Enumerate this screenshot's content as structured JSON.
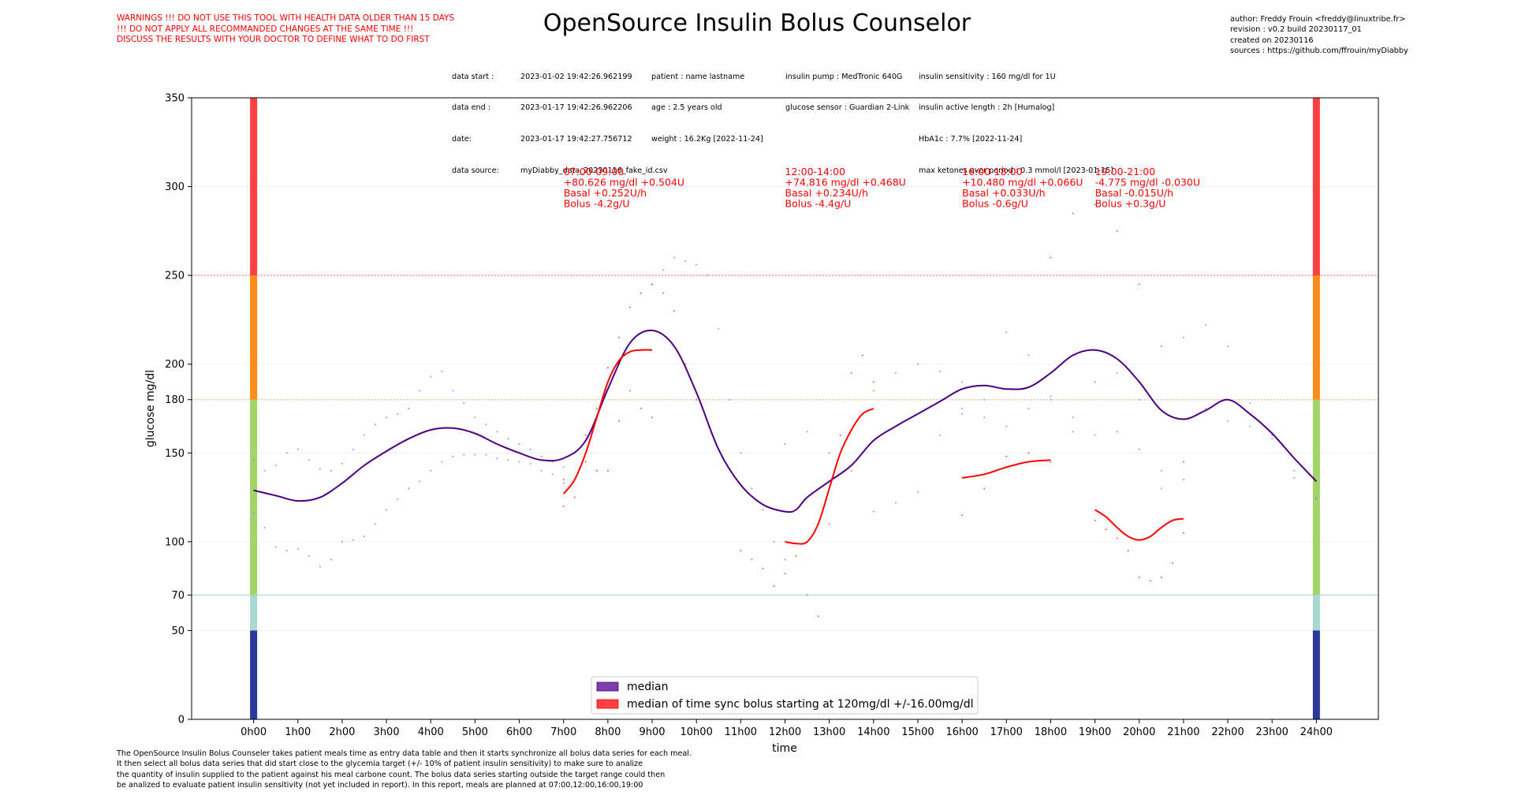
{
  "warnings": [
    "WARNINGS !!! DO NOT USE THIS TOOL WITH HEALTH DATA OLDER THAN 15 DAYS",
    "!!! DO NOT APPLY ALL RECOMMANDED CHANGES AT THE SAME TIME !!!",
    "DISCUSS THE RESULTS WITH YOUR DOCTOR TO DEFINE WHAT TO DO FIRST"
  ],
  "title": "OpenSource Insulin Bolus Counselor",
  "info": {
    "labels": [
      "data start :",
      "data end :",
      "date:",
      "data source:"
    ],
    "dates": [
      "2023-01-02 19:42:26.962199",
      "2023-01-17 19:42:26.962206",
      "2023-01-17 19:42:27.756712",
      "myDiabby_data_20230116_fake_id.csv"
    ],
    "patient": [
      "patient : name lastname",
      "age : 2.5 years old",
      "weight : 16.2Kg [2022-11-24]"
    ],
    "devices": [
      "insulin pump : MedTronic 640G",
      "glucose sensor : Guardian 2-Link"
    ],
    "insulin": [
      "insulin sensitivity : 160 mg/dl for 1U",
      "insulin active length : 2h [Humalog]",
      "HbA1c : 7.7% [2022-11-24]",
      "max ketones over period : 0.3 mmol/l [2023-01-15]"
    ]
  },
  "author": [
    "author: Freddy Frouin <freddy@linuxtribe.fr>",
    "revision : v0.2 build 20230117_01",
    "created on 20230116",
    "sources : https://github.com/ffrouin/myDiabby"
  ],
  "footer": [
    "The OpenSource Insulin Bolus Counseler takes patient meals time as entry data table and then it starts synchronize all bolus data series for each meal.",
    "It then select all bolus data series that did start close to the glycemia target (+/- 10% of patient insulin sensitivity) to make sure to analize",
    "the quantity of insulin supplied to the patient against his meal carbone count. The bolus data series starting outside the target range could then",
    "be analized to evaluate patient insulin sensitivity (not yet included in report). In this report, meals are planned at 07:00,12:00,16:00,19:00"
  ],
  "colors": {
    "median": "#4b0082",
    "bolus": "#ff0000",
    "scatter_purple": "#9370db",
    "scatter_red": "#ff3030",
    "band_high": "#ff4040",
    "band_elevated": "#ff8c1a",
    "band_target": "#a3d468",
    "band_low": "#a8d8d0",
    "band_very_low": "#2b3a9a",
    "line_250": "#ff6060",
    "line_180": "#e8c070",
    "line_70": "#a0d8e8"
  },
  "chart_data": {
    "type": "line",
    "xlabel": "time",
    "ylabel": "glucose mg/dl",
    "xlim": [
      -1.4,
      25.4
    ],
    "ylim": [
      0,
      350
    ],
    "x_ticks": [
      0,
      1,
      2,
      3,
      4,
      5,
      6,
      7,
      8,
      9,
      10,
      11,
      12,
      13,
      14,
      15,
      16,
      17,
      18,
      19,
      20,
      21,
      22,
      23,
      24
    ],
    "x_tick_labels": [
      "0h00",
      "1h00",
      "2h00",
      "3h00",
      "4h00",
      "5h00",
      "6h00",
      "7h00",
      "8h00",
      "9h00",
      "10h00",
      "11h00",
      "12h00",
      "13h00",
      "14h00",
      "15h00",
      "16h00",
      "17h00",
      "18h00",
      "19h00",
      "20h00",
      "21h00",
      "22h00",
      "23h00",
      "24h00"
    ],
    "y_ticks": [
      0,
      50,
      70,
      100,
      150,
      180,
      200,
      250,
      300,
      350
    ],
    "grid": true,
    "legend_position": "bottom-center",
    "bands": [
      {
        "from": 250,
        "to": 350,
        "color": "#ff4040"
      },
      {
        "from": 180,
        "to": 250,
        "color": "#ff8c1a"
      },
      {
        "from": 70,
        "to": 180,
        "color": "#a3d468"
      },
      {
        "from": 50,
        "to": 70,
        "color": "#a8d8d0"
      },
      {
        "from": 0,
        "to": 50,
        "color": "#2b3a9a"
      }
    ],
    "hlines": [
      {
        "y": 250,
        "color": "#ff6060",
        "style": "dotted"
      },
      {
        "y": 180,
        "color": "#e8c070",
        "style": "dotted"
      },
      {
        "y": 70,
        "color": "#a0d8e8",
        "style": "solid"
      }
    ],
    "median": {
      "name": "median",
      "x": [
        0,
        0.5,
        1,
        1.5,
        2,
        2.5,
        3,
        3.5,
        4,
        4.5,
        5,
        5.5,
        6,
        6.5,
        7,
        7.5,
        8,
        8.5,
        9,
        9.5,
        10,
        10.5,
        11,
        11.5,
        12,
        12.25,
        12.5,
        13,
        13.5,
        14,
        14.5,
        15,
        15.5,
        16,
        16.5,
        17,
        17.5,
        18,
        18.5,
        19,
        19.5,
        20,
        20.5,
        21,
        21.5,
        22,
        22.5,
        23,
        23.5,
        24
      ],
      "y": [
        129,
        126,
        123,
        125,
        133,
        143,
        151,
        158,
        163,
        164,
        161,
        155,
        150,
        146,
        147,
        157,
        186,
        212,
        219,
        210,
        184,
        152,
        132,
        121,
        117,
        118,
        125,
        134,
        143,
        157,
        165,
        172,
        179,
        186,
        188,
        186,
        187,
        195,
        205,
        208,
        203,
        190,
        174,
        169,
        174,
        180,
        172,
        161,
        147,
        134
      ]
    },
    "bolus_series": [
      {
        "name": "median of time sync bolus starting at 120mg/dl +/-16.00mg/dl",
        "segments": [
          {
            "x": [
              7,
              7.25,
              7.5,
              7.75,
              8,
              8.25,
              8.5,
              8.75,
              9
            ],
            "y": [
              127,
              135,
              150,
              170,
              190,
              202,
              207,
              208,
              208
            ]
          },
          {
            "x": [
              12,
              12.25,
              12.5,
              12.75,
              13,
              13.25,
              13.5,
              13.75,
              14
            ],
            "y": [
              100,
              99,
              100,
              110,
              130,
              150,
              163,
              172,
              175
            ]
          },
          {
            "x": [
              16,
              16.5,
              17,
              17.5,
              18
            ],
            "y": [
              136,
              138,
              142,
              145,
              146
            ]
          },
          {
            "x": [
              19,
              19.25,
              19.5,
              19.75,
              20,
              20.25,
              20.5,
              20.75,
              21
            ],
            "y": [
              118,
              114,
              108,
              103,
              101,
              103,
              108,
              112,
              113
            ]
          }
        ]
      }
    ],
    "annotations": [
      {
        "x": 7,
        "y": 303,
        "lines": [
          "07:00-09:00",
          "+80.626 mg/dl +0.504U",
          "Basal +0.252U/h",
          "Bolus  -4.2g/U"
        ]
      },
      {
        "x": 12,
        "y": 303,
        "lines": [
          "12:00-14:00",
          "+74.816 mg/dl +0.468U",
          "Basal +0.234U/h",
          "Bolus  -4.4g/U"
        ]
      },
      {
        "x": 16,
        "y": 303,
        "lines": [
          "16:00-18:00",
          "+10.480 mg/dl +0.066U",
          "Basal +0.033U/h",
          "Bolus  -0.6g/U"
        ]
      },
      {
        "x": 19,
        "y": 303,
        "lines": [
          "19:00-21:00",
          "-4.775 mg/dl -0.030U",
          "Basal -0.015U/h",
          "Bolus  +0.3g/U"
        ]
      }
    ],
    "scatter_purple_series": [
      {
        "x": [
          0,
          0.25,
          0.5,
          0.75,
          1,
          1.25,
          1.5,
          1.75,
          2,
          2.25,
          2.5,
          2.75,
          3,
          3.25,
          3.5,
          3.75,
          4,
          4.25,
          4.5,
          4.75,
          5,
          5.25,
          5.5,
          5.75,
          6,
          6.25,
          6.5,
          6.75,
          7
        ],
        "y": [
          146,
          140,
          143,
          150,
          152,
          146,
          141,
          140,
          144,
          152,
          160,
          166,
          170,
          172,
          175,
          185,
          193,
          196,
          185,
          178,
          170,
          166,
          162,
          158,
          155,
          152,
          148,
          145,
          142
        ]
      },
      {
        "x": [
          0,
          0.25,
          0.5,
          0.75,
          1,
          1.25,
          1.5,
          1.75,
          2,
          2.25,
          2.5,
          2.75,
          3,
          3.25,
          3.5,
          3.75,
          4,
          4.25,
          4.5,
          4.75,
          5,
          5.25,
          5.5,
          5.75,
          6,
          6.25,
          6.5,
          6.75,
          7
        ],
        "y": [
          116,
          108,
          97,
          95,
          96,
          92,
          86,
          90,
          100,
          101,
          103,
          110,
          118,
          124,
          130,
          134,
          140,
          145,
          148,
          149,
          149,
          149,
          147,
          146,
          145,
          144,
          140,
          138,
          133
        ]
      },
      {
        "x": [
          9,
          9.25,
          9.5,
          9.75,
          10,
          10.25,
          10.5,
          10.75,
          11,
          11.25,
          11.5,
          11.75,
          12
        ],
        "y": [
          245,
          253,
          260,
          258,
          256,
          250,
          220,
          180,
          150,
          130,
          118,
          100,
          90
        ]
      },
      {
        "x": [
          12,
          12.5,
          13,
          13.5,
          14,
          14.5,
          15,
          15.5,
          16
        ],
        "y": [
          155,
          162,
          150,
          140,
          117,
          122,
          128,
          160,
          172
        ]
      },
      {
        "x": [
          14,
          14.5,
          15,
          15.5,
          16,
          16.5,
          17,
          17.5,
          18,
          18.5,
          19,
          19.5,
          20,
          20.5,
          21,
          21.5,
          22,
          22.5,
          23,
          23.5,
          24
        ],
        "y": [
          185,
          195,
          200,
          196,
          190,
          170,
          165,
          175,
          180,
          170,
          190,
          195,
          180,
          140,
          135,
          175,
          168,
          165,
          158,
          140,
          124
        ]
      },
      {
        "x": [
          16,
          16.5,
          17,
          17.5,
          18,
          18.5,
          19,
          19.5,
          20,
          20.5,
          21,
          21.5,
          22,
          22.5,
          23,
          23.5,
          24
        ],
        "y": [
          175,
          180,
          218,
          205,
          182,
          162,
          160,
          162,
          152,
          130,
          215,
          222,
          210,
          178,
          160,
          136,
          125
        ]
      }
    ],
    "scatter_red_series": [
      {
        "x": [
          7,
          7.25,
          7.5,
          7.75,
          8,
          8.25,
          8.5,
          8.75,
          9,
          9.25,
          9.5,
          9.75,
          10
        ],
        "y": [
          120,
          125,
          145,
          175,
          198,
          215,
          232,
          240,
          245,
          240,
          230,
          200,
          180
        ]
      },
      {
        "x": [
          7,
          7.25,
          7.5,
          7.75,
          8,
          8.25,
          8.5,
          8.75,
          9
        ],
        "y": [
          135,
          150,
          160,
          140,
          140,
          168,
          185,
          175,
          170
        ]
      },
      {
        "x": [
          11,
          11.25,
          11.5,
          11.75,
          12,
          12.25,
          12.5,
          12.75,
          13,
          13.25,
          13.5,
          13.75,
          14
        ],
        "y": [
          95,
          90,
          85,
          75,
          82,
          92,
          70,
          58,
          110,
          160,
          195,
          205,
          190
        ]
      },
      {
        "x": [
          16,
          16.5,
          17,
          17.5,
          18
        ],
        "y": [
          115,
          130,
          148,
          150,
          145
        ]
      },
      {
        "x": [
          19,
          19.25,
          19.5,
          19.75,
          20,
          20.25,
          20.5,
          20.75,
          21
        ],
        "y": [
          112,
          107,
          102,
          95,
          80,
          78,
          80,
          88,
          105
        ]
      },
      {
        "x": [
          18,
          18.5,
          19,
          19.5,
          20,
          20.5,
          21
        ],
        "y": [
          260,
          285,
          290,
          275,
          245,
          210,
          145
        ]
      }
    ]
  },
  "legend": [
    {
      "label": "median of time sync bolus starting at 120mg/dl +/-16.00mg/dl"
    }
  ],
  "legend_median_label": "median"
}
